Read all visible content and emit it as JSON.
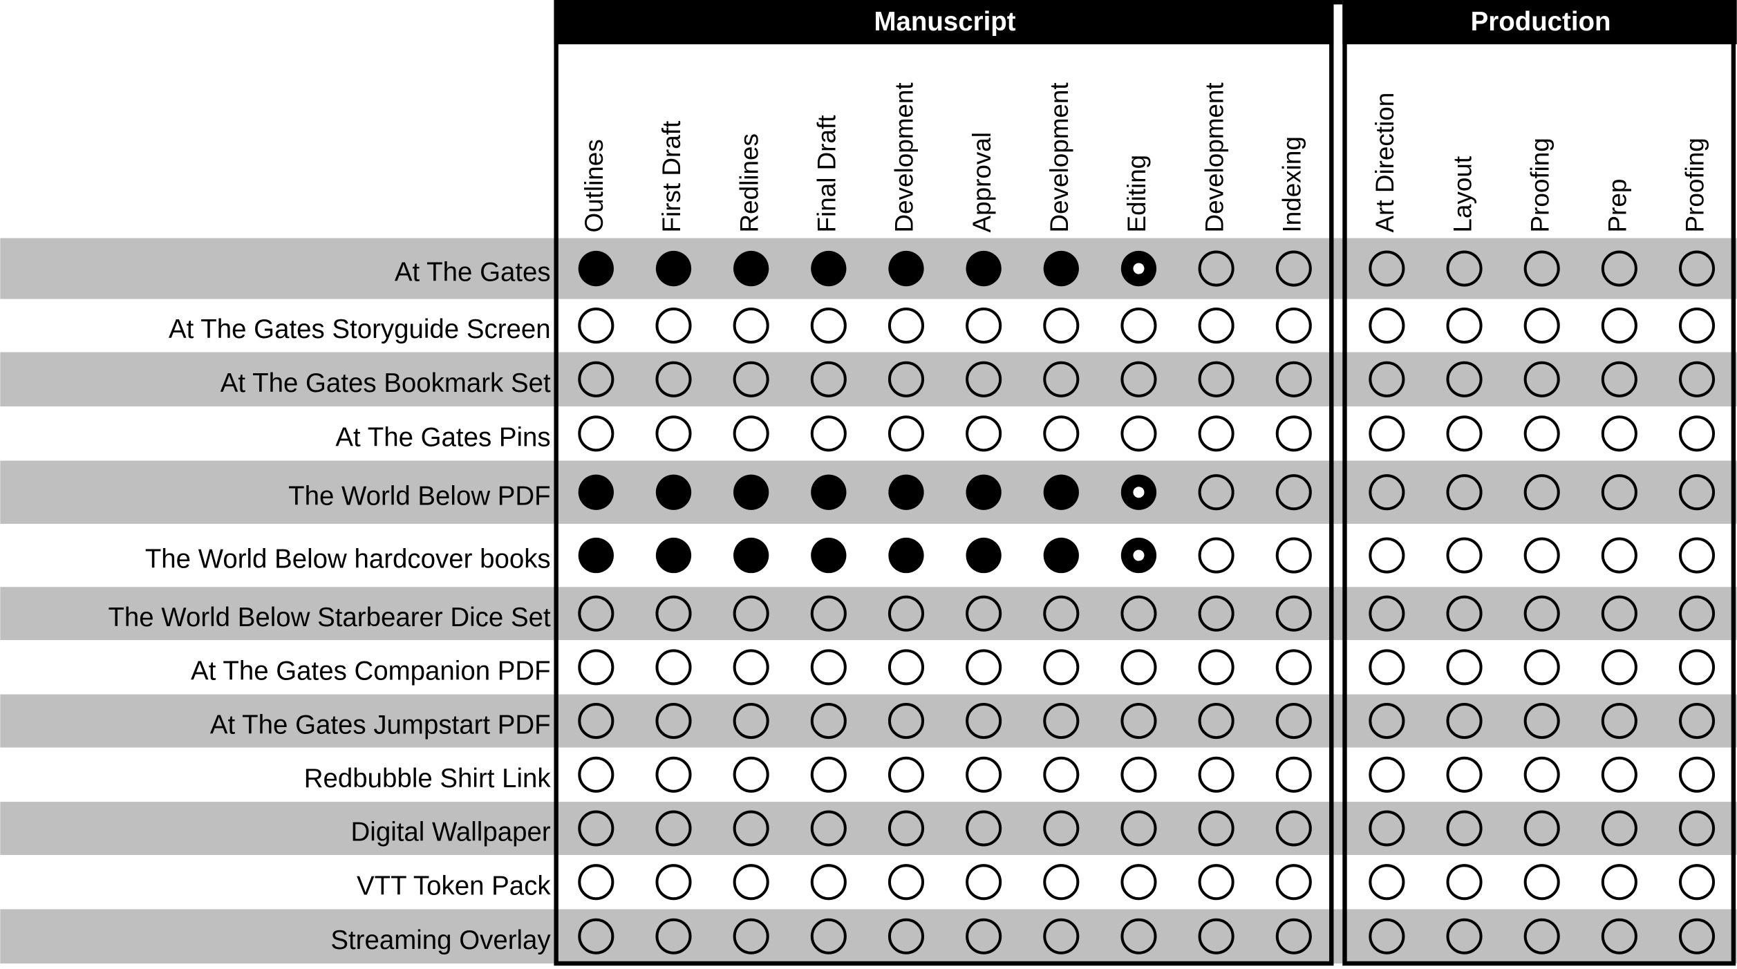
{
  "groups": [
    {
      "title": "Manuscript",
      "columns": [
        "Outlines",
        "First Draft",
        "Redlines",
        "Final Draft",
        "Development",
        "Approval",
        "Development",
        "Editing",
        "Development",
        "Indexing"
      ]
    },
    {
      "title": "Production",
      "columns": [
        "Art Direction",
        "Layout",
        "Proofing",
        "Prep",
        "Proofing"
      ]
    }
  ],
  "rows": [
    {
      "label": "At The Gates",
      "status": [
        "complete",
        "complete",
        "complete",
        "complete",
        "complete",
        "complete",
        "complete",
        "in-progress",
        "not-started",
        "not-started",
        "not-started",
        "not-started",
        "not-started",
        "not-started",
        "not-started"
      ]
    },
    {
      "label": "At The Gates Storyguide Screen",
      "status": [
        "not-started",
        "not-started",
        "not-started",
        "not-started",
        "not-started",
        "not-started",
        "not-started",
        "not-started",
        "not-started",
        "not-started",
        "not-started",
        "not-started",
        "not-started",
        "not-started",
        "not-started"
      ]
    },
    {
      "label": "At The Gates Bookmark Set",
      "status": [
        "not-started",
        "not-started",
        "not-started",
        "not-started",
        "not-started",
        "not-started",
        "not-started",
        "not-started",
        "not-started",
        "not-started",
        "not-started",
        "not-started",
        "not-started",
        "not-started",
        "not-started"
      ]
    },
    {
      "label": "At The Gates Pins",
      "status": [
        "not-started",
        "not-started",
        "not-started",
        "not-started",
        "not-started",
        "not-started",
        "not-started",
        "not-started",
        "not-started",
        "not-started",
        "not-started",
        "not-started",
        "not-started",
        "not-started",
        "not-started"
      ]
    },
    {
      "label": "The World Below PDF",
      "status": [
        "complete",
        "complete",
        "complete",
        "complete",
        "complete",
        "complete",
        "complete",
        "in-progress",
        "not-started",
        "not-started",
        "not-started",
        "not-started",
        "not-started",
        "not-started",
        "not-started"
      ]
    },
    {
      "label": "The World Below hardcover books",
      "status": [
        "complete",
        "complete",
        "complete",
        "complete",
        "complete",
        "complete",
        "complete",
        "in-progress",
        "not-started",
        "not-started",
        "not-started",
        "not-started",
        "not-started",
        "not-started",
        "not-started"
      ]
    },
    {
      "label": "The World Below Starbearer Dice Set",
      "status": [
        "not-started",
        "not-started",
        "not-started",
        "not-started",
        "not-started",
        "not-started",
        "not-started",
        "not-started",
        "not-started",
        "not-started",
        "not-started",
        "not-started",
        "not-started",
        "not-started",
        "not-started"
      ]
    },
    {
      "label": "At The Gates Companion PDF",
      "status": [
        "not-started",
        "not-started",
        "not-started",
        "not-started",
        "not-started",
        "not-started",
        "not-started",
        "not-started",
        "not-started",
        "not-started",
        "not-started",
        "not-started",
        "not-started",
        "not-started",
        "not-started"
      ]
    },
    {
      "label": "At The Gates Jumpstart PDF",
      "status": [
        "not-started",
        "not-started",
        "not-started",
        "not-started",
        "not-started",
        "not-started",
        "not-started",
        "not-started",
        "not-started",
        "not-started",
        "not-started",
        "not-started",
        "not-started",
        "not-started",
        "not-started"
      ]
    },
    {
      "label": "Redbubble Shirt Link",
      "status": [
        "not-started",
        "not-started",
        "not-started",
        "not-started",
        "not-started",
        "not-started",
        "not-started",
        "not-started",
        "not-started",
        "not-started",
        "not-started",
        "not-started",
        "not-started",
        "not-started",
        "not-started"
      ]
    },
    {
      "label": "Digital Wallpaper",
      "status": [
        "not-started",
        "not-started",
        "not-started",
        "not-started",
        "not-started",
        "not-started",
        "not-started",
        "not-started",
        "not-started",
        "not-started",
        "not-started",
        "not-started",
        "not-started",
        "not-started",
        "not-started"
      ]
    },
    {
      "label": "VTT Token Pack",
      "status": [
        "not-started",
        "not-started",
        "not-started",
        "not-started",
        "not-started",
        "not-started",
        "not-started",
        "not-started",
        "not-started",
        "not-started",
        "not-started",
        "not-started",
        "not-started",
        "not-started",
        "not-started"
      ]
    },
    {
      "label": "Streaming Overlay",
      "status": [
        "not-started",
        "not-started",
        "not-started",
        "not-started",
        "not-started",
        "not-started",
        "not-started",
        "not-started",
        "not-started",
        "not-started",
        "not-started",
        "not-started",
        "not-started",
        "not-started",
        "not-started"
      ]
    }
  ]
}
